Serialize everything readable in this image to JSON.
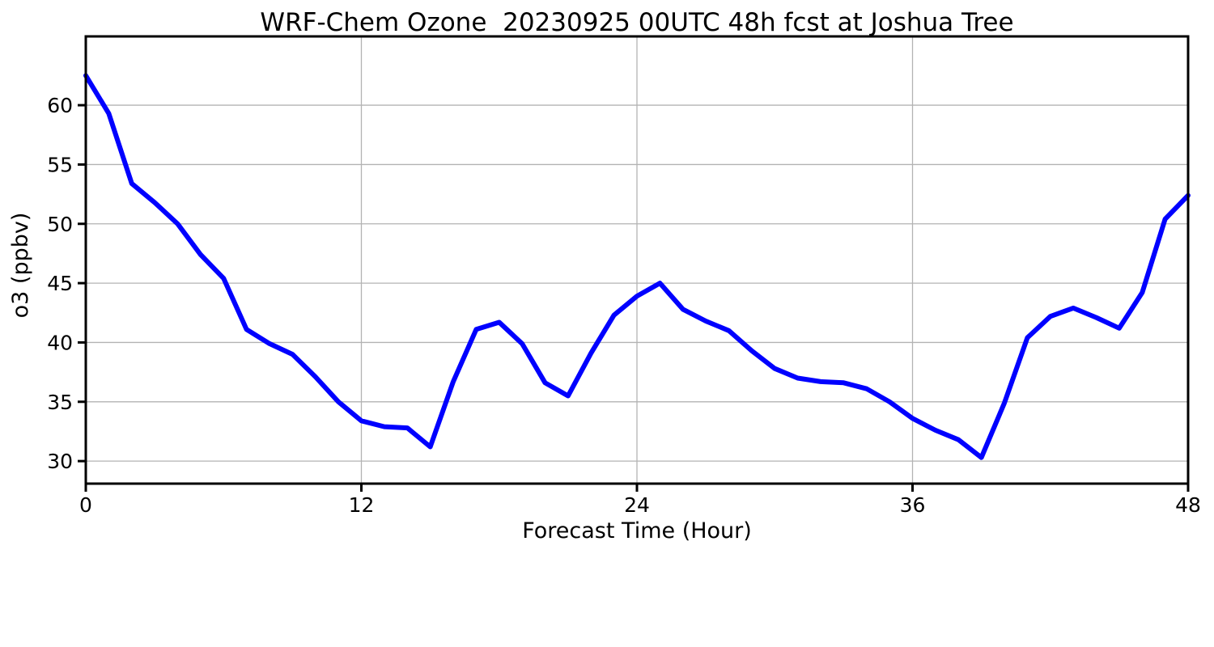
{
  "figure": {
    "background": "#ffffff"
  },
  "chart_data": {
    "type": "line",
    "title": "WRF-Chem Ozone  20230925 00UTC 48h fcst at Joshua Tree",
    "xlabel": "Forecast Time (Hour)",
    "ylabel": "o3 (ppbv)",
    "x": [
      0,
      1,
      2,
      3,
      4,
      5,
      6,
      7,
      8,
      9,
      10,
      11,
      12,
      13,
      14,
      15,
      16,
      17,
      18,
      19,
      20,
      21,
      22,
      23,
      24,
      25,
      26,
      27,
      28,
      29,
      30,
      31,
      32,
      33,
      34,
      35,
      36,
      37,
      38,
      39,
      40,
      41,
      42,
      43,
      44,
      45,
      46,
      47,
      48
    ],
    "series": [
      {
        "name": "o3",
        "color": "#0000ff",
        "line_width": 6,
        "values": [
          62.5,
          59.3,
          53.4,
          51.8,
          50.0,
          47.4,
          45.4,
          41.1,
          39.9,
          39.0,
          37.1,
          35.0,
          33.4,
          32.9,
          32.8,
          31.2,
          36.7,
          41.1,
          41.7,
          39.9,
          36.6,
          35.5,
          39.1,
          42.3,
          43.9,
          45.0,
          42.8,
          41.8,
          41.0,
          39.3,
          37.8,
          37.0,
          36.7,
          36.6,
          36.1,
          35.0,
          33.6,
          32.6,
          31.8,
          30.3,
          34.9,
          40.4,
          42.2,
          42.9,
          42.1,
          41.2,
          44.2,
          50.4,
          52.4
        ]
      }
    ],
    "xticks": [
      0,
      12,
      24,
      36,
      48
    ],
    "yticks": [
      30,
      35,
      40,
      45,
      50,
      55,
      60
    ],
    "xlim": [
      0,
      48
    ],
    "ylim": [
      28.1,
      65.8
    ],
    "grid": true,
    "grid_color": "#b3b3b3",
    "axis_color": "#000000",
    "legend": "none"
  }
}
